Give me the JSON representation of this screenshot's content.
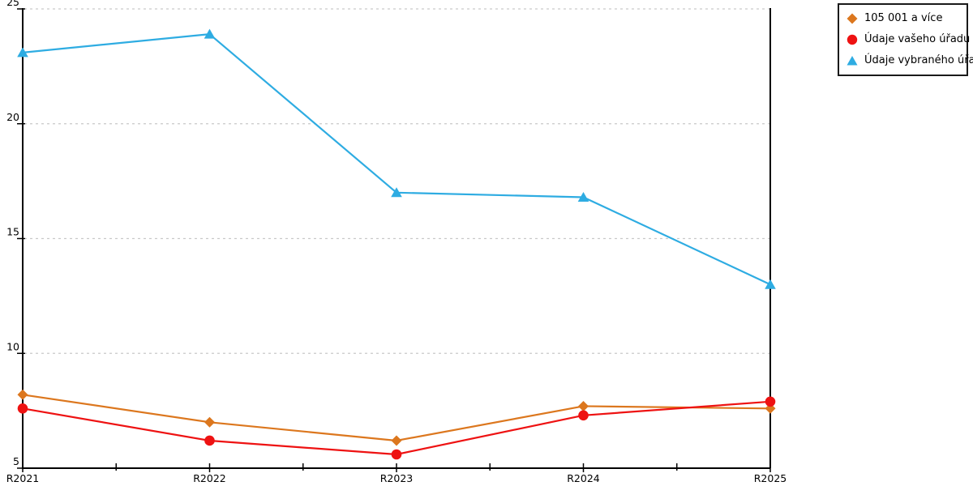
{
  "chart_data": {
    "type": "line",
    "title": "",
    "xlabel": "",
    "ylabel": "",
    "categories": [
      "R2021",
      "R2022",
      "R2023",
      "R2024",
      "R2025"
    ],
    "series": [
      {
        "name": "105 001 a více",
        "marker": "diamond",
        "color": "#DC771E",
        "values": [
          8.2,
          7.0,
          6.2,
          7.7,
          7.6
        ]
      },
      {
        "name": "Údaje vašeho úřadu",
        "marker": "circle",
        "color": "#EE1212",
        "values": [
          7.6,
          6.2,
          5.6,
          7.3,
          7.9
        ]
      },
      {
        "name": "Údaje vybraného úřadu",
        "marker": "triangle",
        "color": "#2EACE2",
        "values": [
          23.1,
          23.9,
          17.0,
          16.8,
          13.0
        ]
      }
    ],
    "ylim": [
      5,
      25
    ],
    "yticks": [
      5,
      10,
      15,
      20,
      25
    ],
    "grid": "horizontal-dashed",
    "gridline_color": "#c9c9c9",
    "axis_color": "#000000",
    "legend_position": "outside-top-right",
    "minor_x_ticks_between_categories": true
  }
}
